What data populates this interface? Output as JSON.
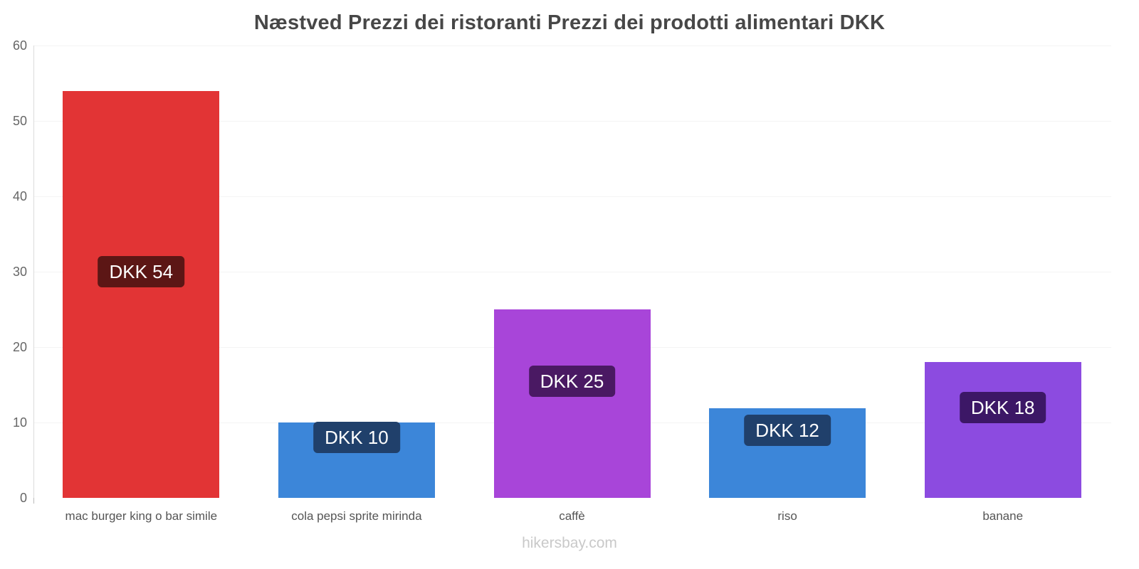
{
  "title": "Næstved Prezzi dei ristoranti Prezzi dei prodotti alimentari DKK",
  "footer": {
    "label": "hikersbay.com"
  },
  "chart_data": {
    "type": "bar",
    "title": "Næstved Prezzi dei ristoranti Prezzi dei prodotti alimentari DKK",
    "categories": [
      "mac burger king o bar simile",
      "cola pepsi sprite mirinda",
      "caffè",
      "riso",
      "banane"
    ],
    "values": [
      54,
      10,
      25,
      11.9,
      18
    ],
    "value_labels": [
      "DKK 54",
      "DKK 10",
      "DKK 25",
      "DKK 12",
      "DKK 18"
    ],
    "bar_colors": [
      "#e23435",
      "#3c86d9",
      "#a845d9",
      "#3c86d9",
      "#8c4be0"
    ],
    "label_colors": [
      "#5c1615",
      "#20406b",
      "#4a1963",
      "#20406b",
      "#3c1766"
    ],
    "ylim": [
      0,
      60
    ],
    "yticks": [
      0,
      10,
      20,
      30,
      40,
      50,
      60
    ],
    "xlabel": "",
    "ylabel": "",
    "grid": true,
    "legend": false
  }
}
